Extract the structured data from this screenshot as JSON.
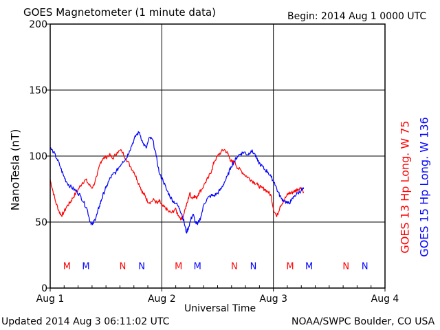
{
  "chart_data": {
    "type": "line",
    "title": "GOES Magnetometer (1 minute data)",
    "begin_label": "Begin:  2014 Aug 1 0000 UTC",
    "ylabel": "NanoTesla (nT)",
    "xlabel": "Universal Time",
    "ylim": [
      0,
      200
    ],
    "yticks": [
      0,
      50,
      100,
      150,
      200
    ],
    "xlim_days": [
      0,
      3
    ],
    "xtick_labels": [
      "Aug 1",
      "Aug 2",
      "Aug 3",
      "Aug 4"
    ],
    "grid": true,
    "series": [
      {
        "name": "GOES 13 Hp  Long. W 75",
        "color": "#ff0000",
        "x_days": [
          0.0,
          0.02,
          0.05,
          0.08,
          0.1,
          0.12,
          0.15,
          0.18,
          0.2,
          0.23,
          0.26,
          0.29,
          0.32,
          0.35,
          0.38,
          0.42,
          0.45,
          0.47,
          0.5,
          0.53,
          0.56,
          0.6,
          0.64,
          0.68,
          0.72,
          0.75,
          0.78,
          0.81,
          0.83,
          0.85,
          0.87,
          0.9,
          0.93,
          0.96,
          0.98,
          1.0,
          1.03,
          1.06,
          1.09,
          1.12,
          1.15,
          1.18,
          1.21,
          1.23,
          1.25,
          1.27,
          1.29,
          1.31,
          1.33,
          1.36,
          1.39,
          1.42,
          1.45,
          1.47,
          1.5,
          1.53,
          1.56,
          1.59,
          1.61,
          1.63,
          1.65,
          1.68,
          1.71,
          1.74,
          1.77,
          1.8,
          1.83,
          1.86,
          1.89,
          1.92,
          1.95,
          1.98,
          2.0,
          2.03,
          2.06,
          2.09,
          2.12,
          2.14,
          2.16,
          2.18,
          2.2,
          2.22,
          2.25,
          2.27
        ],
        "values": [
          82,
          75,
          65,
          58,
          55,
          57,
          62,
          65,
          68,
          72,
          76,
          80,
          82,
          78,
          76,
          85,
          95,
          98,
          99,
          101,
          98,
          103,
          104,
          98,
          92,
          88,
          82,
          76,
          72,
          70,
          66,
          65,
          67,
          64,
          66,
          62,
          61,
          58,
          57,
          60,
          55,
          52,
          60,
          65,
          72,
          68,
          70,
          68,
          72,
          75,
          80,
          84,
          90,
          96,
          100,
          103,
          105,
          102,
          98,
          95,
          96,
          91,
          89,
          86,
          84,
          82,
          80,
          78,
          76,
          75,
          73,
          70,
          60,
          54,
          62,
          66,
          70,
          72,
          72,
          73,
          74,
          75,
          76,
          73
        ]
      },
      {
        "name": "GOES 15 Hp  Long. W 136",
        "color": "#0000ff",
        "x_days": [
          0.0,
          0.03,
          0.06,
          0.09,
          0.12,
          0.15,
          0.18,
          0.21,
          0.24,
          0.27,
          0.3,
          0.33,
          0.36,
          0.38,
          0.4,
          0.42,
          0.44,
          0.46,
          0.48,
          0.5,
          0.53,
          0.56,
          0.59,
          0.62,
          0.65,
          0.68,
          0.71,
          0.74,
          0.77,
          0.8,
          0.83,
          0.86,
          0.89,
          0.92,
          0.95,
          0.98,
          1.01,
          1.04,
          1.07,
          1.1,
          1.13,
          1.16,
          1.18,
          1.2,
          1.22,
          1.24,
          1.26,
          1.28,
          1.3,
          1.32,
          1.35,
          1.38,
          1.41,
          1.44,
          1.47,
          1.5,
          1.53,
          1.56,
          1.59,
          1.62,
          1.65,
          1.68,
          1.71,
          1.74,
          1.77,
          1.8,
          1.83,
          1.86,
          1.89,
          1.92,
          1.95,
          1.98,
          2.01,
          2.04,
          2.07,
          2.1,
          2.13,
          2.16,
          2.19,
          2.22,
          2.25,
          2.27
        ],
        "values": [
          106,
          103,
          98,
          92,
          85,
          80,
          77,
          75,
          73,
          70,
          65,
          60,
          50,
          48,
          52,
          56,
          62,
          67,
          72,
          76,
          82,
          86,
          88,
          92,
          96,
          98,
          104,
          110,
          116,
          118,
          110,
          106,
          114,
          112,
          100,
          86,
          82,
          75,
          70,
          66,
          64,
          60,
          56,
          50,
          42,
          46,
          52,
          56,
          50,
          48,
          54,
          64,
          68,
          70,
          70,
          72,
          75,
          80,
          85,
          92,
          96,
          100,
          102,
          103,
          101,
          104,
          102,
          96,
          93,
          90,
          88,
          84,
          80,
          73,
          68,
          66,
          64,
          66,
          70,
          72,
          74,
          75
        ]
      }
    ],
    "event_markers": [
      {
        "label": "M",
        "color": "#ff0000",
        "x_days": 0.15
      },
      {
        "label": "M",
        "color": "#0000ff",
        "x_days": 0.32
      },
      {
        "label": "N",
        "color": "#ff0000",
        "x_days": 0.65
      },
      {
        "label": "N",
        "color": "#0000ff",
        "x_days": 0.82
      },
      {
        "label": "M",
        "color": "#ff0000",
        "x_days": 1.15
      },
      {
        "label": "M",
        "color": "#0000ff",
        "x_days": 1.32
      },
      {
        "label": "N",
        "color": "#ff0000",
        "x_days": 1.65
      },
      {
        "label": "N",
        "color": "#0000ff",
        "x_days": 1.82
      },
      {
        "label": "M",
        "color": "#ff0000",
        "x_days": 2.15
      },
      {
        "label": "M",
        "color": "#0000ff",
        "x_days": 2.32
      },
      {
        "label": "N",
        "color": "#ff0000",
        "x_days": 2.65
      },
      {
        "label": "N",
        "color": "#0000ff",
        "x_days": 2.82
      }
    ],
    "event_marker_level": 17
  },
  "footer": {
    "updated": "Updated 2014 Aug  3 06:11:02 UTC",
    "source": "NOAA/SWPC Boulder, CO USA"
  }
}
